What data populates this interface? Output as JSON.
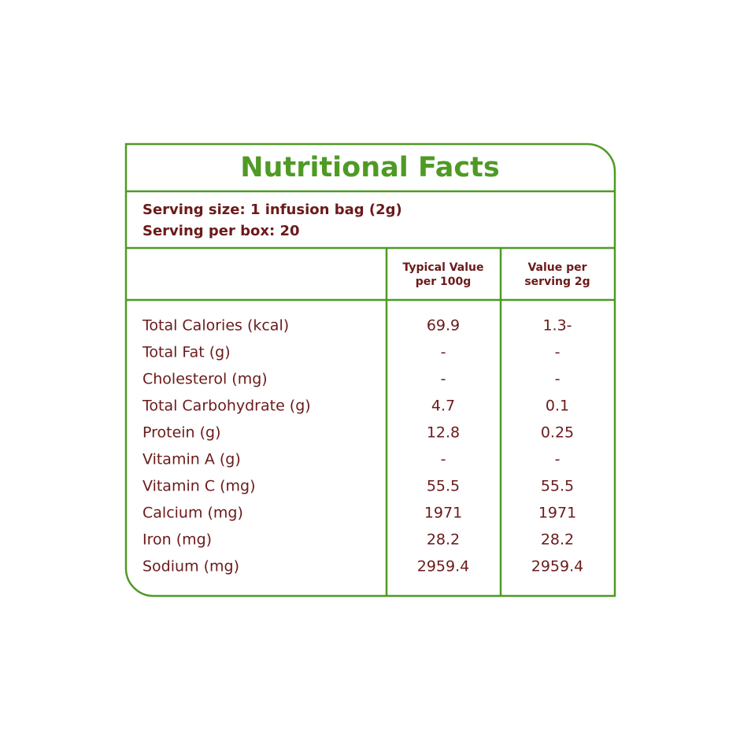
{
  "title": "Nutritional Facts",
  "serving": [
    "Serving size: 1 infusion bag (2g)",
    "Serving per box: 20"
  ],
  "table": {
    "columns": [
      [
        "Typical Value",
        "per 100g"
      ],
      [
        "Value per",
        "serving 2g"
      ]
    ],
    "rows": [
      [
        "Total Calories (kcal)",
        "69.9",
        "1.3-"
      ],
      [
        "Total Fat (g)",
        "-",
        "-"
      ],
      [
        "Cholesterol (mg)",
        "-",
        "-"
      ],
      [
        "Total Carbohydrate (g)",
        "4.7",
        "0.1"
      ],
      [
        "Protein (g)",
        "12.8",
        "0.25"
      ],
      [
        "Vitamin A (g)",
        "-",
        "-"
      ],
      [
        "Vitamin C (mg)",
        "55.5",
        "55.5"
      ],
      [
        "Calcium (mg)",
        "1971",
        "1971"
      ],
      [
        "Iron (mg)",
        "28.2",
        "28.2"
      ],
      [
        "Sodium (mg)",
        "2959.4",
        "2959.4"
      ]
    ]
  }
}
